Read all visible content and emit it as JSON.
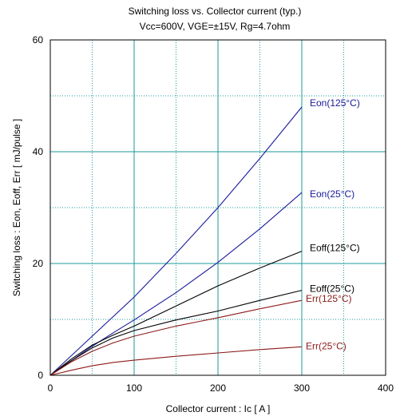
{
  "chart_data": {
    "type": "line",
    "title": "Switching loss  vs.  Collector current  (typ.)",
    "subtitle": "Vcc=600V, VGE=±15V, Rg=4.7ohm",
    "xlabel": "Collector current  :  Ic  [ A ]",
    "ylabel": "Switching loss  :  Eon, Eoff, Err  [ mJ/pulse ]",
    "xlim": [
      0,
      400
    ],
    "ylim": [
      0,
      60
    ],
    "xticks": [
      0,
      100,
      200,
      300,
      400
    ],
    "yticks": [
      0,
      20,
      40,
      60
    ],
    "grid": true,
    "series": [
      {
        "name": "Eon(125°C)",
        "color": "#1a1a9c",
        "x": [
          0,
          25,
          50,
          75,
          100,
          150,
          200,
          250,
          300
        ],
        "y": [
          0,
          3.5,
          7.0,
          10.5,
          14.0,
          21.8,
          30.0,
          38.8,
          48.0
        ]
      },
      {
        "name": "Eon(25°C)",
        "color": "#1a1a9c",
        "x": [
          0,
          25,
          50,
          75,
          100,
          150,
          200,
          250,
          300
        ],
        "y": [
          0,
          2.6,
          5.2,
          7.6,
          9.9,
          14.8,
          20.2,
          26.2,
          32.7
        ]
      },
      {
        "name": "Eoff(125°C)",
        "color": "#000000",
        "x": [
          0,
          25,
          50,
          75,
          100,
          150,
          200,
          250,
          300
        ],
        "y": [
          0,
          2.9,
          5.4,
          7.2,
          8.8,
          12.4,
          16.0,
          19.2,
          22.2
        ]
      },
      {
        "name": "Eoff(25°C)",
        "color": "#000000",
        "x": [
          0,
          25,
          50,
          75,
          100,
          150,
          200,
          250,
          300
        ],
        "y": [
          0,
          2.6,
          4.9,
          6.7,
          8.0,
          9.9,
          11.5,
          13.4,
          15.2
        ]
      },
      {
        "name": "Err(125°C)",
        "color": "#8b1a1a",
        "x": [
          0,
          25,
          50,
          75,
          100,
          150,
          200,
          250,
          300
        ],
        "y": [
          0,
          2.4,
          4.3,
          5.8,
          7.0,
          8.8,
          10.3,
          11.9,
          13.4
        ]
      },
      {
        "name": "Err(25°C)",
        "color": "#8b1a1a",
        "x": [
          0,
          25,
          50,
          75,
          100,
          150,
          200,
          250,
          300
        ],
        "y": [
          0,
          0.9,
          1.7,
          2.3,
          2.7,
          3.4,
          4.0,
          4.6,
          5.1
        ]
      }
    ]
  }
}
